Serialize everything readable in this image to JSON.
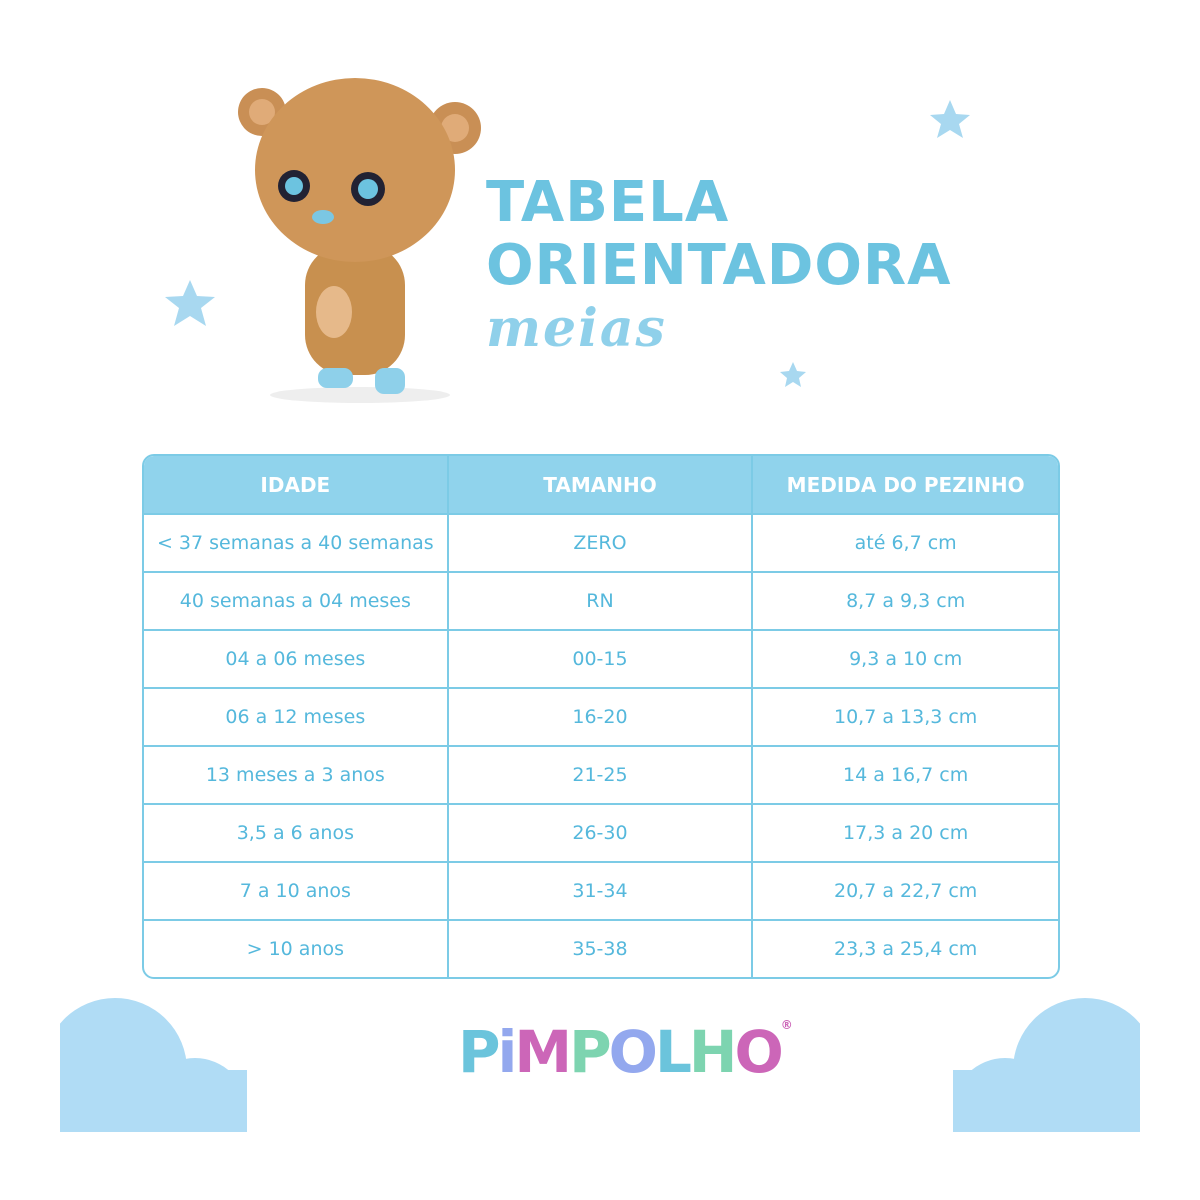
{
  "header": {
    "line1": "TABELA",
    "line2": "ORIENTADORA",
    "line3": "meias"
  },
  "table": {
    "columns": [
      "IDADE",
      "TAMANHO",
      "MEDIDA DO PEZINHO"
    ],
    "rows": [
      [
        "< 37 semanas a 40 semanas",
        "ZERO",
        "até 6,7 cm"
      ],
      [
        "40 semanas a 04 meses",
        "RN",
        "8,7 a 9,3 cm"
      ],
      [
        "04 a 06 meses",
        "00-15",
        "9,3 a 10 cm"
      ],
      [
        "06 a 12 meses",
        "16-20",
        "10,7 a 13,3 cm"
      ],
      [
        "13 meses a 3 anos",
        "21-25",
        "14 a 16,7 cm"
      ],
      [
        "3,5 a 6 anos",
        "26-30",
        "17,3 a 20 cm"
      ],
      [
        "7 a 10 anos",
        "31-34",
        "20,7 a 22,7 cm"
      ],
      [
        "> 10 anos",
        "35-38",
        "23,3 a 25,4 cm"
      ]
    ]
  },
  "logo": {
    "text": "PIMPOLHO",
    "letters": [
      [
        "P",
        "#6bc4dc"
      ],
      [
        "i",
        "#93a8ee"
      ],
      [
        "M",
        "#cc66b8"
      ],
      [
        "P",
        "#7dd4b0"
      ],
      [
        "O",
        "#93a8ee"
      ],
      [
        "L",
        "#6bc4dc"
      ],
      [
        "H",
        "#7dd4b0"
      ],
      [
        "O",
        "#cc66b8"
      ]
    ],
    "registered": "®"
  },
  "colors": {
    "accent": "#6cc3e0",
    "header_bg": "#90d3ec",
    "cloud": "#b0dcf5",
    "star": "#a8d8f0"
  }
}
